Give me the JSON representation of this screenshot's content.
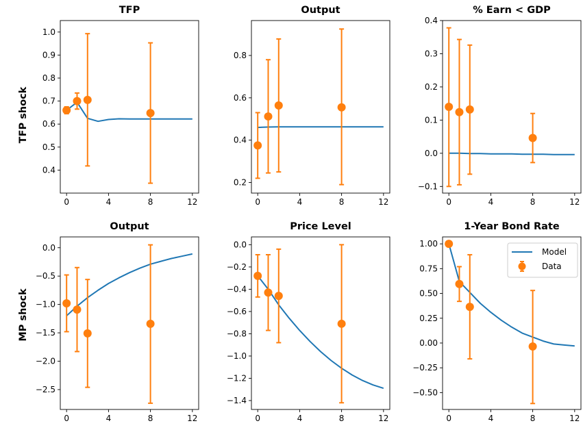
{
  "colors": {
    "model": "#1f77b4",
    "data": "#ff7f0e",
    "axis": "#000000"
  },
  "rows": [
    {
      "label": "TFP shock"
    },
    {
      "label": "MP shock"
    }
  ],
  "legend": {
    "model_label": "Model",
    "data_label": "Data",
    "placement": "upper right of MP-shock 1-Year Bond Rate panel"
  },
  "chart_data": [
    {
      "type": "line",
      "title": "TFP",
      "xlim": [
        -0.6,
        12.6
      ],
      "ylim": [
        0.3,
        1.05
      ],
      "xticks": [
        0,
        4,
        8,
        12
      ],
      "xtick_labels": [
        "0",
        "4",
        "8",
        "12"
      ],
      "yticks": [
        0.4,
        0.5,
        0.6,
        0.7,
        0.8,
        0.9,
        1.0
      ],
      "ytick_labels": [
        "0.4",
        "0.5",
        "0.6",
        "0.7",
        "0.8",
        "0.9",
        "1.0"
      ],
      "model": {
        "name": "Model",
        "x": [
          0,
          1,
          2,
          3,
          4,
          5,
          6,
          7,
          8,
          9,
          10,
          11,
          12
        ],
        "y": [
          0.66,
          0.695,
          0.625,
          0.612,
          0.62,
          0.623,
          0.622,
          0.622,
          0.622,
          0.622,
          0.622,
          0.622,
          0.622
        ]
      },
      "data": {
        "name": "Data",
        "x": [
          0,
          1,
          2,
          8
        ],
        "y": [
          0.66,
          0.7,
          0.705,
          0.648
        ],
        "lower": [
          0.645,
          0.665,
          0.418,
          0.343
        ],
        "upper": [
          0.675,
          0.735,
          0.993,
          0.953
        ]
      }
    },
    {
      "type": "line",
      "title": "Output",
      "xlim": [
        -0.6,
        12.6
      ],
      "ylim": [
        0.15,
        0.965
      ],
      "xticks": [
        0,
        4,
        8,
        12
      ],
      "xtick_labels": [
        "0",
        "4",
        "8",
        "12"
      ],
      "yticks": [
        0.2,
        0.4,
        0.6,
        0.8
      ],
      "ytick_labels": [
        "0.2",
        "0.4",
        "0.6",
        "0.8"
      ],
      "model": {
        "name": "Model",
        "x": [
          0,
          1,
          2,
          3,
          4,
          5,
          6,
          7,
          8,
          9,
          10,
          11,
          12
        ],
        "y": [
          0.46,
          0.462,
          0.463,
          0.463,
          0.463,
          0.463,
          0.463,
          0.463,
          0.463,
          0.463,
          0.463,
          0.463,
          0.463
        ]
      },
      "data": {
        "name": "Data",
        "x": [
          0,
          1,
          2,
          8
        ],
        "y": [
          0.375,
          0.512,
          0.564,
          0.555
        ],
        "lower": [
          0.22,
          0.245,
          0.25,
          0.19
        ],
        "upper": [
          0.53,
          0.78,
          0.878,
          0.925
        ]
      }
    },
    {
      "type": "line",
      "title": "% Earn < GDP",
      "xlim": [
        -0.6,
        12.6
      ],
      "ylim": [
        -0.12,
        0.4
      ],
      "xticks": [
        0,
        4,
        8,
        12
      ],
      "xtick_labels": [
        "0",
        "4",
        "8",
        "12"
      ],
      "yticks": [
        -0.1,
        0.0,
        0.1,
        0.2,
        0.3,
        0.4
      ],
      "ytick_labels": [
        "−0.1",
        "0.0",
        "0.1",
        "0.2",
        "0.3",
        "0.4"
      ],
      "model": {
        "name": "Model",
        "x": [
          0,
          1,
          2,
          3,
          4,
          5,
          6,
          7,
          8,
          9,
          10,
          11,
          12
        ],
        "y": [
          0.0,
          0.0,
          -0.001,
          -0.001,
          -0.002,
          -0.002,
          -0.002,
          -0.003,
          -0.003,
          -0.003,
          -0.004,
          -0.004,
          -0.004
        ]
      },
      "data": {
        "name": "Data",
        "x": [
          0,
          1,
          2,
          8
        ],
        "y": [
          0.14,
          0.124,
          0.132,
          0.046
        ],
        "lower": [
          -0.1,
          -0.095,
          -0.063,
          -0.028
        ],
        "upper": [
          0.378,
          0.343,
          0.326,
          0.12
        ]
      }
    },
    {
      "type": "line",
      "title": "Output",
      "xlim": [
        -0.6,
        12.6
      ],
      "ylim": [
        -2.85,
        0.19
      ],
      "xticks": [
        0,
        4,
        8,
        12
      ],
      "xtick_labels": [
        "0",
        "4",
        "8",
        "12"
      ],
      "yticks": [
        -2.5,
        -2.0,
        -1.5,
        -1.0,
        -0.5,
        0.0
      ],
      "ytick_labels": [
        "−2.5",
        "−2.0",
        "−1.5",
        "−1.0",
        "−0.5",
        "0.0"
      ],
      "model": {
        "name": "Model",
        "x": [
          0,
          1,
          2,
          3,
          4,
          5,
          6,
          7,
          8,
          9,
          10,
          11,
          12
        ],
        "y": [
          -1.2,
          -1.03,
          -0.88,
          -0.75,
          -0.63,
          -0.53,
          -0.44,
          -0.36,
          -0.29,
          -0.24,
          -0.19,
          -0.15,
          -0.11
        ]
      },
      "data": {
        "name": "Data",
        "x": [
          0,
          1,
          2,
          8
        ],
        "y": [
          -0.98,
          -1.09,
          -1.51,
          -1.34
        ],
        "lower": [
          -1.48,
          -1.83,
          -2.46,
          -2.74
        ],
        "upper": [
          -0.48,
          -0.35,
          -0.56,
          0.05
        ]
      }
    },
    {
      "type": "line",
      "title": "Price Level",
      "xlim": [
        -0.6,
        12.6
      ],
      "ylim": [
        -1.48,
        0.07
      ],
      "xticks": [
        0,
        4,
        8,
        12
      ],
      "xtick_labels": [
        "0",
        "4",
        "8",
        "12"
      ],
      "yticks": [
        -1.4,
        -1.2,
        -1.0,
        -0.8,
        -0.6,
        -0.4,
        -0.2,
        0.0
      ],
      "ytick_labels": [
        "−1.4",
        "−1.2",
        "−1.0",
        "−0.8",
        "−0.6",
        "−0.4",
        "−0.2",
        "0.0"
      ],
      "model": {
        "name": "Model",
        "x": [
          0,
          1,
          2,
          3,
          4,
          5,
          6,
          7,
          8,
          9,
          10,
          11,
          12
        ],
        "y": [
          -0.28,
          -0.4,
          -0.54,
          -0.66,
          -0.77,
          -0.87,
          -0.96,
          -1.04,
          -1.11,
          -1.17,
          -1.22,
          -1.26,
          -1.29
        ]
      },
      "data": {
        "name": "Data",
        "x": [
          0,
          1,
          2,
          8
        ],
        "y": [
          -0.28,
          -0.43,
          -0.46,
          -0.71
        ],
        "lower": [
          -0.47,
          -0.77,
          -0.88,
          -1.42
        ],
        "upper": [
          -0.09,
          -0.09,
          -0.04,
          0.0
        ]
      }
    },
    {
      "type": "line",
      "title": "1-Year Bond Rate",
      "xlim": [
        -0.6,
        12.6
      ],
      "ylim": [
        -0.67,
        1.07
      ],
      "xticks": [
        0,
        4,
        8,
        12
      ],
      "xtick_labels": [
        "0",
        "4",
        "8",
        "12"
      ],
      "yticks": [
        -0.5,
        -0.25,
        0.0,
        0.25,
        0.5,
        0.75,
        1.0
      ],
      "ytick_labels": [
        "−0.50",
        "−0.25",
        "0.00",
        "0.25",
        "0.50",
        "0.75",
        "1.00"
      ],
      "model": {
        "name": "Model",
        "x": [
          0,
          1,
          2,
          3,
          4,
          5,
          6,
          7,
          8,
          9,
          10,
          11,
          12
        ],
        "y": [
          1.0,
          0.62,
          0.51,
          0.4,
          0.31,
          0.23,
          0.16,
          0.1,
          0.06,
          0.02,
          -0.01,
          -0.02,
          -0.03
        ]
      },
      "data": {
        "name": "Data",
        "x": [
          0,
          1,
          2,
          8
        ],
        "y": [
          1.0,
          0.595,
          0.365,
          -0.035
        ],
        "lower": [
          1.0,
          0.42,
          -0.16,
          -0.61
        ],
        "upper": [
          1.0,
          0.77,
          0.89,
          0.53
        ]
      }
    }
  ]
}
